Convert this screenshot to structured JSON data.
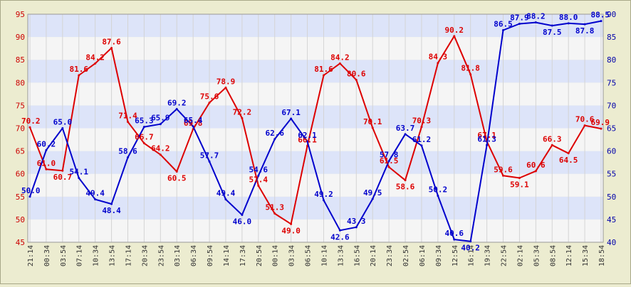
{
  "chart_data": {
    "type": "line",
    "title": "",
    "xlabel": "",
    "ylabel_left": "",
    "ylabel_right": "",
    "ylim_left": [
      45,
      95
    ],
    "ylim_right": [
      40,
      90
    ],
    "yticks_left": [
      "45",
      "50",
      "55",
      "60",
      "65",
      "70",
      "75",
      "80",
      "85",
      "90",
      "95"
    ],
    "yticks_right": [
      "40",
      "45",
      "50",
      "55",
      "60",
      "65",
      "70",
      "75",
      "80",
      "85",
      "90"
    ],
    "grid": true,
    "legend": "none",
    "x_tick_labels": [
      "21:14",
      "00:34",
      "03:54",
      "07:14",
      "10:34",
      "13:54",
      "17:14",
      "20:34",
      "23:54",
      "03:14",
      "06:34",
      "09:54",
      "14:14",
      "17:34",
      "20:54",
      "00:14",
      "03:34",
      "06:54",
      "10:14",
      "13:34",
      "16:54",
      "20:14",
      "23:34",
      "02:54",
      "06:14",
      "09:34",
      "12:54",
      "16:14",
      "19:34",
      "22:54",
      "02:14",
      "05:34",
      "08:54",
      "12:14",
      "15:34",
      "18:54"
    ],
    "series": [
      {
        "axis": "left",
        "color": "#dd0000",
        "values": [
          70.2,
          61.0,
          60.7,
          81.6,
          84.2,
          87.6,
          71.4,
          66.7,
          64.2,
          60.5,
          69.8,
          75.6,
          78.9,
          72.2,
          57.4,
          51.3,
          49.0,
          66.1,
          81.6,
          84.2,
          80.6,
          70.1,
          61.5,
          58.6,
          70.3,
          84.3,
          90.2,
          81.8,
          67.1,
          59.6,
          59.1,
          60.6,
          66.3,
          64.5,
          70.6,
          69.9
        ],
        "labels": [
          "70.2",
          "61.0",
          "60.7",
          "81.6",
          "84.2",
          "87.6",
          "71.4",
          "66.7",
          "64.2",
          "60.5",
          "69.8",
          "75.6",
          "78.9",
          "72.2",
          "57.4",
          "51.3",
          "49.0",
          "66.1",
          "81.6",
          "84.2",
          "80.6",
          "70.1",
          "61.5",
          "58.6",
          "70.3",
          "84.3",
          "90.2",
          "81.8",
          "67.1",
          "59.6",
          "59.1",
          "60.6",
          "66.3",
          "64.5",
          "70.6",
          "69.9"
        ]
      },
      {
        "axis": "right",
        "color": "#0000cc",
        "values": [
          50.0,
          60.2,
          65.0,
          54.1,
          49.4,
          48.4,
          58.6,
          65.3,
          65.9,
          69.2,
          65.4,
          57.7,
          49.4,
          46.0,
          54.6,
          62.6,
          67.1,
          62.1,
          49.2,
          42.6,
          43.3,
          49.5,
          57.8,
          63.7,
          61.2,
          50.2,
          40.6,
          40.2,
          61.3,
          86.5,
          87.9,
          88.2,
          87.5,
          88.0,
          87.8,
          88.5
        ],
        "labels": [
          "50.0",
          "60.2",
          "65.0",
          "54.1",
          "49.4",
          "48.4",
          "58.6",
          "65.3",
          "65.9",
          "69.2",
          "65.4",
          "57.7",
          "49.4",
          "46.0",
          "54.6",
          "62.6",
          "67.1",
          "62.1",
          "49.2",
          "42.6",
          "43.3",
          "49.5",
          "57.8",
          "63.7",
          "61.2",
          "50.2",
          "40.6",
          "40.2",
          "61.3",
          "86.5",
          "87.9",
          "88.2",
          "87.5",
          "88.0",
          "87.8",
          "88.5"
        ]
      }
    ]
  },
  "style": {
    "band_a": "#dde4f9",
    "band_b": "#f5f5f5",
    "axis_left_color": "#cc0000",
    "axis_right_color": "#0000aa",
    "x_tick_color": "#333333",
    "frame_bg": "#ececd0"
  }
}
